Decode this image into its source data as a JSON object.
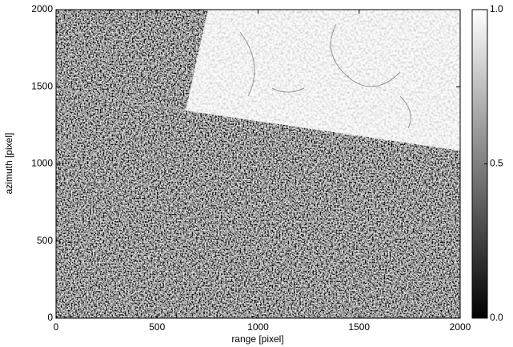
{
  "chart_data": {
    "type": "image",
    "xlabel": "range [pixel]",
    "ylabel": "azimuth [pixel]",
    "xlim": [
      0,
      2000
    ],
    "xticks": [
      0,
      500,
      1000,
      1500,
      2000
    ],
    "ylim": [
      0,
      2000
    ],
    "yticks": [
      0,
      500,
      1000,
      1500,
      2000
    ],
    "colormap": "gray",
    "clim": [
      0,
      1
    ],
    "cticks": [
      {
        "value": 0,
        "label": "0.0"
      },
      0.5,
      {
        "value": 1,
        "label": "1.0"
      }
    ]
  }
}
